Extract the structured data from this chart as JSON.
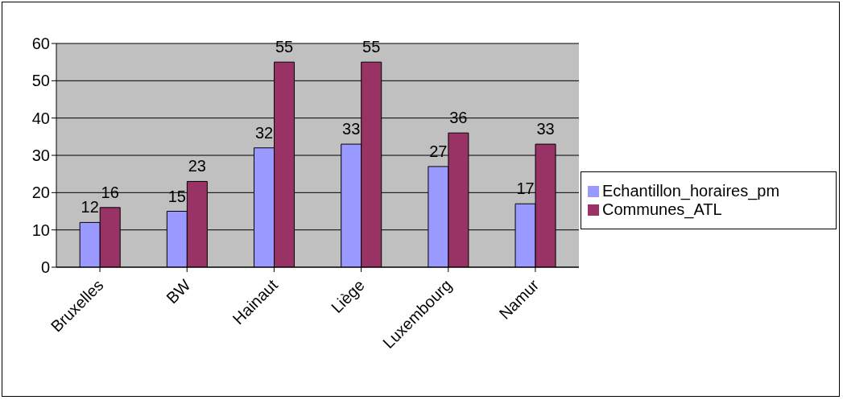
{
  "chart_data": {
    "type": "bar",
    "categories": [
      "Bruxelles",
      "BW",
      "Hainaut",
      "Liège",
      "Luxembourg",
      "Namur"
    ],
    "series": [
      {
        "name": "Echantillon_horaires_pm",
        "color": "#9999ff",
        "values": [
          12,
          15,
          32,
          33,
          27,
          17
        ]
      },
      {
        "name": "Communes_ATL",
        "color": "#993366",
        "values": [
          16,
          23,
          55,
          55,
          36,
          33
        ]
      }
    ],
    "ylim": [
      0,
      60
    ],
    "yticks": [
      0,
      10,
      20,
      30,
      40,
      50,
      60
    ],
    "grid": "y",
    "legend": "right",
    "data_labels": true
  }
}
